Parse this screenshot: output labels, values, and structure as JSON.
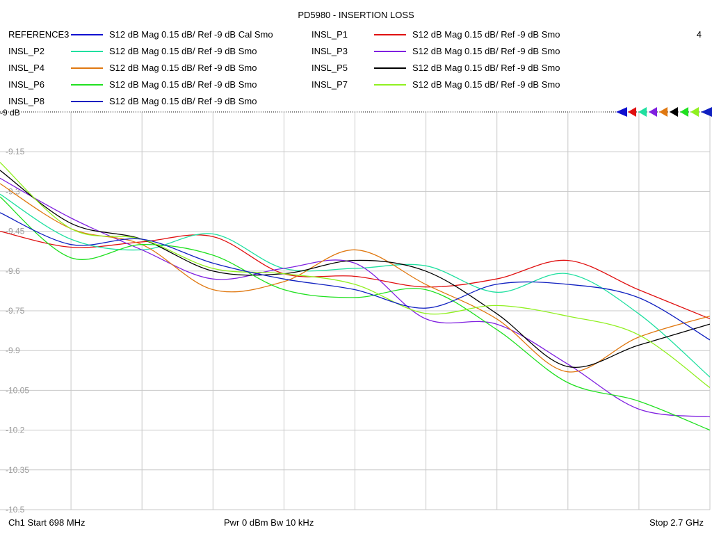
{
  "title": "PD5980 - INSERTION LOSS",
  "channel_number": "4",
  "legend": [
    {
      "name": "REFERENCE3",
      "desc": "S12  dB Mag  0.15 dB/ Ref -9 dB  Cal Smo",
      "color": "#1010d0"
    },
    {
      "name": "INSL_P1",
      "desc": "S12  dB Mag  0.15 dB/ Ref -9 dB  Smo",
      "color": "#e01010"
    },
    {
      "name": "INSL_P2",
      "desc": "S12  dB Mag  0.15 dB/ Ref -9 dB  Smo",
      "color": "#20e0a0"
    },
    {
      "name": "INSL_P3",
      "desc": "S12  dB Mag  0.15 dB/ Ref -9 dB  Smo",
      "color": "#8020e0"
    },
    {
      "name": "INSL_P4",
      "desc": "S12  dB Mag  0.15 dB/ Ref -9 dB  Smo",
      "color": "#e07810"
    },
    {
      "name": "INSL_P5",
      "desc": "S12  dB Mag  0.15 dB/ Ref -9 dB  Smo",
      "color": "#000000"
    },
    {
      "name": "INSL_P6",
      "desc": "S12  dB Mag  0.15 dB/ Ref -9 dB  Smo",
      "color": "#20e020"
    },
    {
      "name": "INSL_P7",
      "desc": "S12  dB Mag  0.15 dB/ Ref -9 dB  Smo",
      "color": "#90f020"
    },
    {
      "name": "INSL_P8",
      "desc": "S12  dB Mag  0.15 dB/ Ref -9 dB  Smo",
      "color": "#1020c0"
    }
  ],
  "footer": {
    "left": "Ch1  Start  698 MHz",
    "middle": "Pwr  0 dBm  Bw  10 kHz",
    "right": "Stop  2.7 GHz"
  },
  "chart_data": {
    "type": "line",
    "title": "PD5980 - INSERTION LOSS",
    "xlim": [
      698,
      2700
    ],
    "ylim": [
      -10.5,
      -9.0
    ],
    "y_ticks": [
      -9,
      -9.15,
      -9.3,
      -9.45,
      -9.6,
      -9.75,
      -9.9,
      -10.05,
      -10.2,
      -10.35,
      -10.5
    ],
    "y_tick_labels": [
      "-9 dB",
      "-9.15",
      "-9.3",
      "-9.45",
      "-9.6",
      "-9.75",
      "-9.9",
      "-10.05",
      "-10.2",
      "-10.35",
      "-10.5"
    ],
    "reference_level": -9,
    "reference_label": "-9 dB",
    "grid": true,
    "x_grid_divisions": 10,
    "marker_colors": [
      "#1010d0",
      "#e01010",
      "#20e0a0",
      "#8020e0",
      "#e07810",
      "#000000",
      "#20e020",
      "#90f020",
      "#1020c0"
    ],
    "x": [
      698,
      898,
      1098,
      1298,
      1498,
      1698,
      1898,
      2098,
      2298,
      2498,
      2700
    ],
    "series": [
      {
        "name": "INSL_P1",
        "color": "#e01010",
        "values": [
          -9.45,
          -9.51,
          -9.49,
          -9.47,
          -9.61,
          -9.62,
          -9.66,
          -9.63,
          -9.56,
          -9.67,
          -9.78
        ]
      },
      {
        "name": "INSL_P2",
        "color": "#20e0a0",
        "values": [
          -9.31,
          -9.48,
          -9.52,
          -9.46,
          -9.59,
          -9.59,
          -9.58,
          -9.68,
          -9.61,
          -9.76,
          -10.0
        ]
      },
      {
        "name": "INSL_P3",
        "color": "#8020e0",
        "values": [
          -9.25,
          -9.4,
          -9.52,
          -9.63,
          -9.59,
          -9.57,
          -9.78,
          -9.8,
          -9.95,
          -10.12,
          -10.15
        ]
      },
      {
        "name": "INSL_P4",
        "color": "#e07810",
        "values": [
          -9.27,
          -9.44,
          -9.5,
          -9.67,
          -9.64,
          -9.52,
          -9.65,
          -9.78,
          -9.98,
          -9.85,
          -9.77
        ]
      },
      {
        "name": "INSL_P5",
        "color": "#000000",
        "values": [
          -9.22,
          -9.42,
          -9.48,
          -9.6,
          -9.61,
          -9.56,
          -9.6,
          -9.76,
          -9.96,
          -9.88,
          -9.8
        ]
      },
      {
        "name": "INSL_P6",
        "color": "#20e020",
        "values": [
          -9.32,
          -9.55,
          -9.5,
          -9.54,
          -9.67,
          -9.7,
          -9.67,
          -9.82,
          -10.02,
          -10.09,
          -10.2
        ]
      },
      {
        "name": "INSL_P7",
        "color": "#90f020",
        "values": [
          -9.19,
          -9.44,
          -9.48,
          -9.59,
          -9.61,
          -9.65,
          -9.76,
          -9.73,
          -9.77,
          -9.84,
          -10.04
        ]
      },
      {
        "name": "INSL_P8",
        "color": "#1020c0",
        "values": [
          -9.38,
          -9.5,
          -9.48,
          -9.57,
          -9.63,
          -9.67,
          -9.74,
          -9.65,
          -9.65,
          -9.7,
          -9.86
        ]
      }
    ]
  }
}
